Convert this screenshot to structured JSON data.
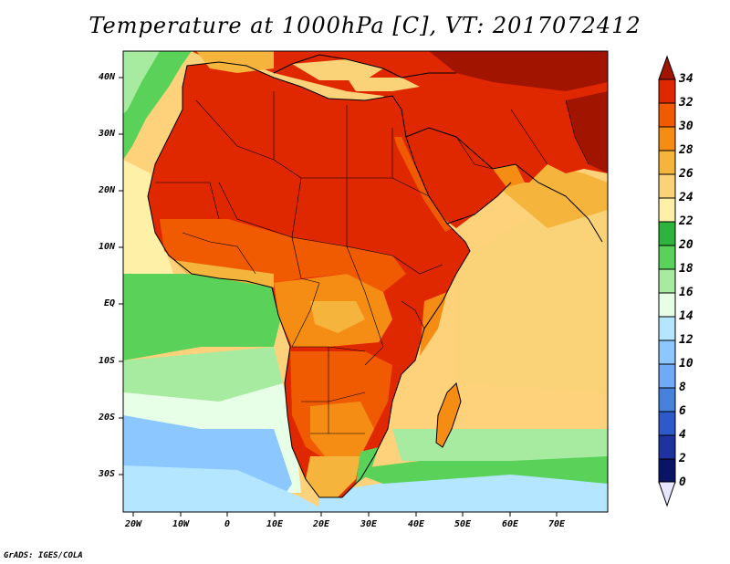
{
  "title": "Temperature at 1000hPa [C], VT: 2017072412",
  "credit": "GrADS: IGES/COLA",
  "map": {
    "lon_range": [
      -23,
      80
    ],
    "lat_range": [
      -36,
      45
    ],
    "lat_ticks": [
      "40N",
      "30N",
      "20N",
      "10N",
      "EQ",
      "10S",
      "20S",
      "30S"
    ],
    "lat_tick_values": [
      40,
      30,
      20,
      10,
      0,
      -10,
      -20,
      -30
    ],
    "lon_ticks": [
      "20W",
      "10W",
      "0",
      "10E",
      "20E",
      "30E",
      "40E",
      "50E",
      "60E",
      "70E"
    ],
    "lon_tick_values": [
      -20,
      -10,
      0,
      10,
      20,
      30,
      40,
      50,
      60,
      70
    ]
  },
  "colorbar": {
    "labels": [
      "34",
      "32",
      "30",
      "28",
      "26",
      "24",
      "22",
      "20",
      "18",
      "16",
      "14",
      "12",
      "10",
      "8",
      "6",
      "4",
      "2",
      "0"
    ],
    "colors": [
      "#a01400",
      "#e02800",
      "#f05a00",
      "#f58c14",
      "#f5b43c",
      "#fad278",
      "#fff0a8",
      "#2eb43c",
      "#5ad25a",
      "#a6eba0",
      "#e6ffe6",
      "#b4e6ff",
      "#8cc8ff",
      "#6eaaf5",
      "#4682dc",
      "#2d5ac8",
      "#1e32a0",
      "#0a1464",
      "#e6e6ff"
    ]
  }
}
